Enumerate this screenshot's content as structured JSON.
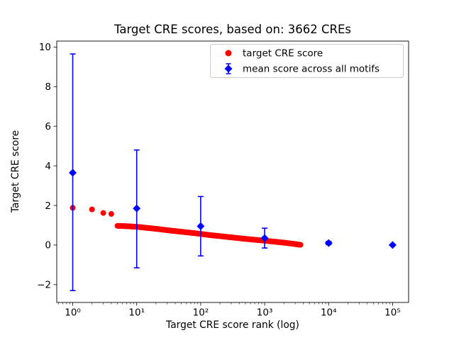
{
  "figure": {
    "title": "Target CRE scores, based on: 3662 CREs",
    "xlabel": "Target CRE score rank (log)",
    "ylabel": "Target CRE score"
  },
  "chart_data": {
    "type": "scatter",
    "title": "Target CRE scores, based on: 3662 CREs",
    "xlabel": "Target CRE score rank (log)",
    "ylabel": "Target CRE score",
    "x_scale": "log",
    "grid": false,
    "legend_position": "upper right",
    "xlim_log10": [
      -0.25,
      5.25
    ],
    "ylim": [
      -2.9,
      10.3
    ],
    "x_ticks": [
      {
        "value": 1,
        "label": "10⁰"
      },
      {
        "value": 10,
        "label": "10¹"
      },
      {
        "value": 100,
        "label": "10²"
      },
      {
        "value": 1000,
        "label": "10³"
      },
      {
        "value": 10000,
        "label": "10⁴"
      },
      {
        "value": 100000,
        "label": "10⁵"
      }
    ],
    "y_ticks": [
      {
        "value": -2,
        "label": "−2"
      },
      {
        "value": 0,
        "label": "0"
      },
      {
        "value": 2,
        "label": "2"
      },
      {
        "value": 4,
        "label": "4"
      },
      {
        "value": 6,
        "label": "6"
      },
      {
        "value": 8,
        "label": "8"
      },
      {
        "value": 10,
        "label": "10"
      }
    ],
    "series": [
      {
        "name": "target CRE score",
        "kind": "scatter",
        "color": "#ff0000",
        "marker": "circle",
        "marker_radius_px": 4,
        "points": [
          [
            1,
            1.88
          ],
          [
            2,
            1.8
          ],
          [
            3,
            1.62
          ],
          [
            4,
            1.57
          ]
        ],
        "dense_band": {
          "log10_rank_score_anchors": [
            [
              0.7,
              0.97
            ],
            [
              0.85,
              0.95
            ],
            [
              1.0,
              0.92
            ],
            [
              1.15,
              0.87
            ],
            [
              1.3,
              0.82
            ],
            [
              1.5,
              0.74
            ],
            [
              1.7,
              0.67
            ],
            [
              1.9,
              0.6
            ],
            [
              2.0,
              0.56
            ],
            [
              2.15,
              0.5
            ],
            [
              2.3,
              0.45
            ],
            [
              2.5,
              0.38
            ],
            [
              2.7,
              0.31
            ],
            [
              2.9,
              0.25
            ],
            [
              3.0,
              0.22
            ],
            [
              3.15,
              0.17
            ],
            [
              3.3,
              0.12
            ],
            [
              3.45,
              0.06
            ],
            [
              3.5636,
              0.01
            ]
          ],
          "step_log10": 0.01
        }
      },
      {
        "name": "mean score across all motifs",
        "kind": "errorbar",
        "color": "#0000ff",
        "marker": "diamond",
        "marker_size_px": 5.5,
        "points": [
          {
            "x": 1,
            "y": 3.65,
            "lo": -2.3,
            "hi": 9.65
          },
          {
            "x": 10,
            "y": 1.85,
            "lo": -1.15,
            "hi": 4.8
          },
          {
            "x": 100,
            "y": 0.95,
            "lo": -0.55,
            "hi": 2.45
          },
          {
            "x": 1000,
            "y": 0.35,
            "lo": -0.15,
            "hi": 0.85
          },
          {
            "x": 10000,
            "y": 0.1,
            "lo": 0.02,
            "hi": 0.18
          },
          {
            "x": 100000,
            "y": 0.0,
            "lo": 0.0,
            "hi": 0.0
          }
        ]
      }
    ]
  }
}
